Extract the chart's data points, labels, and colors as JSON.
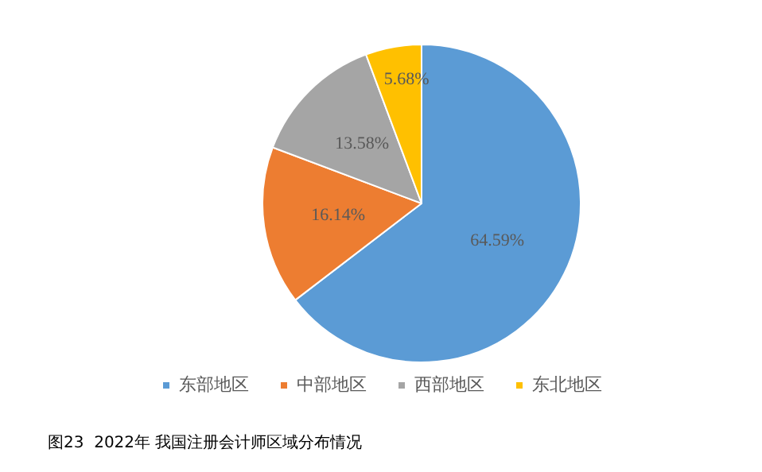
{
  "chart_data": {
    "type": "pie",
    "categories": [
      "东部地区",
      "中部地区",
      "西部地区",
      "东北地区"
    ],
    "values": [
      64.59,
      16.14,
      13.58,
      5.68
    ],
    "value_labels": [
      "64.59%",
      "16.14%",
      "13.58%",
      "5.68%"
    ],
    "colors": [
      "#5b9bd5",
      "#ed7d31",
      "#a5a5a5",
      "#ffc000"
    ],
    "legend": "bottom",
    "annotations": [
      "图23  2022年 我国注册会计师区域分布情况"
    ]
  }
}
